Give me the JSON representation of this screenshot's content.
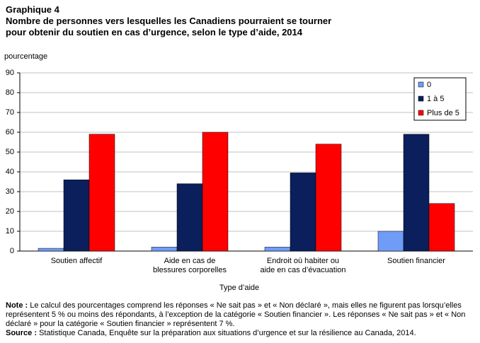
{
  "chart_data": {
    "type": "bar",
    "label": "Graphique 4",
    "title": [
      "Nombre de personnes vers lesquelles les Canadiens pourraient se tourner",
      "pour obtenir du soutien en cas d’urgence, selon le type d’aide, 2014"
    ],
    "y_label": "pourcentage",
    "x_label": "Type d’aide",
    "categories": [
      [
        "Soutien affectif"
      ],
      [
        "Aide en cas de",
        "blessures corporelles"
      ],
      [
        "Endroit où habiter ou",
        "aide en cas d’évacuation"
      ],
      [
        "Soutien financier"
      ]
    ],
    "series": [
      {
        "name": "0",
        "color": "#6f9cf7",
        "values": [
          1.4,
          2,
          2,
          10
        ]
      },
      {
        "name": "1 à 5",
        "color": "#0a1f5c",
        "values": [
          36,
          34,
          39.5,
          59
        ]
      },
      {
        "name": "Plus de 5",
        "color": "#ff0000",
        "values": [
          59,
          60,
          54,
          24
        ]
      }
    ],
    "ylim": [
      0,
      90
    ],
    "yticks": [
      0,
      10,
      20,
      30,
      40,
      50,
      60,
      70,
      80,
      90
    ],
    "grid": true,
    "legend": "top-right",
    "note": {
      "label": "Note :",
      "text": "Le calcul des pourcentages comprend les réponses « Ne sait pas » et « Non déclaré », mais elles ne figurent pas lorsqu’elles représentent 5 % ou moins des répondants, à l’exception de la catégorie « Soutien financier ». Les réponses « Ne sait pas » et « Non déclaré » pour la catégorie « Soutien financier » représentent 7 %."
    },
    "source": {
      "label": "Source :",
      "text": "Statistique Canada, Enquête sur la préparation aux situations d’urgence et sur la résilience au Canada, 2014."
    }
  }
}
